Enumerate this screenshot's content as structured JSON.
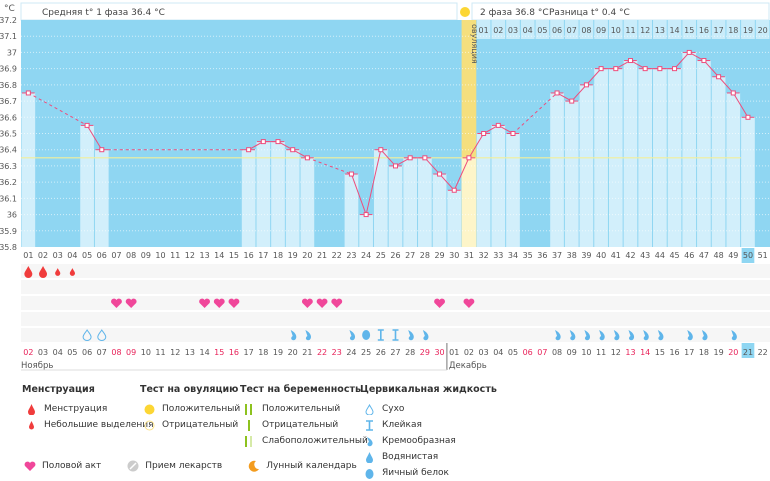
{
  "header": {
    "unit_label": "°C",
    "phase1_label": "Средняя t° 1 фаза 36.4 °C",
    "phase2_label": "2 фаза 36.8 °C",
    "diff_label": "Разница t° 0.4 °C",
    "ovulation_label": "овуляция"
  },
  "chart_data": {
    "type": "line",
    "title": "",
    "ylabel": "°C",
    "ylim": [
      35.8,
      37.2
    ],
    "yticks": [
      "35.8",
      "35.9",
      "36",
      "36.1",
      "36.2",
      "36.3",
      "36.4",
      "36.5",
      "36.6",
      "36.7",
      "36.8",
      "36.9",
      "37",
      "37.1",
      "37.2"
    ],
    "cycle_days": [
      "01",
      "02",
      "03",
      "04",
      "05",
      "06",
      "07",
      "08",
      "09",
      "10",
      "11",
      "12",
      "13",
      "14",
      "15",
      "16",
      "17",
      "18",
      "19",
      "20",
      "21",
      "22",
      "23",
      "24",
      "25",
      "26",
      "27",
      "28",
      "29",
      "30",
      "31",
      "32",
      "33",
      "34",
      "35",
      "36",
      "37",
      "38",
      "39",
      "40",
      "41",
      "42",
      "43",
      "44",
      "45",
      "46",
      "47",
      "48",
      "49",
      "50",
      "51"
    ],
    "dates": [
      "02",
      "03",
      "04",
      "05",
      "06",
      "07",
      "08",
      "09",
      "10",
      "11",
      "12",
      "13",
      "14",
      "15",
      "16",
      "17",
      "18",
      "19",
      "20",
      "21",
      "22",
      "23",
      "24",
      "25",
      "26",
      "27",
      "28",
      "29",
      "30",
      "01",
      "02",
      "03",
      "04",
      "05",
      "06",
      "07",
      "08",
      "09",
      "10",
      "11",
      "12",
      "13",
      "14",
      "15",
      "16",
      "17",
      "18",
      "19",
      "20",
      "21",
      "22"
    ],
    "weekend_dates_idx": [
      0,
      6,
      7,
      13,
      14,
      20,
      21,
      27,
      28,
      34,
      35,
      41,
      42,
      48
    ],
    "months": [
      "Ноябрь",
      "Декабрь"
    ],
    "phase2_days": [
      "01",
      "02",
      "03",
      "04",
      "05",
      "06",
      "07",
      "08",
      "09",
      "10",
      "11",
      "12",
      "13",
      "14",
      "15",
      "16",
      "17",
      "18",
      "19",
      "20"
    ],
    "series": [
      {
        "name": "Температура",
        "values": [
          36.75,
          null,
          null,
          null,
          36.55,
          36.4,
          null,
          null,
          null,
          null,
          null,
          null,
          null,
          null,
          null,
          36.4,
          36.45,
          36.45,
          36.4,
          36.35,
          null,
          null,
          36.25,
          36.0,
          36.4,
          36.3,
          36.35,
          36.35,
          36.25,
          36.15,
          36.35,
          36.5,
          36.55,
          36.5,
          null,
          null,
          36.75,
          36.7,
          36.8,
          36.9,
          36.9,
          36.95,
          36.9,
          36.9,
          36.9,
          37.0,
          36.95,
          36.85,
          36.75,
          36.6,
          null
        ]
      }
    ],
    "coverline": 36.35,
    "ovulation_day": 31,
    "today_day": 50,
    "menstruation": {
      "1": "heavy",
      "2": "heavy",
      "3": "light",
      "4": "light"
    },
    "intercourse_days": [
      7,
      8,
      13,
      14,
      15,
      20,
      21,
      22,
      29,
      31
    ],
    "cervical_fluid": {
      "5": "dry",
      "6": "dry",
      "19": "creamy",
      "20": "creamy",
      "23": "creamy",
      "24": "eggwhite",
      "25": "sticky",
      "26": "sticky",
      "27": "creamy",
      "28": "creamy",
      "37": "creamy",
      "38": "creamy",
      "39": "creamy",
      "40": "creamy",
      "41": "creamy",
      "42": "creamy",
      "43": "creamy",
      "44": "creamy",
      "46": "creamy",
      "47": "creamy",
      "49": "creamy"
    },
    "grid": true
  },
  "colors": {
    "bg": "#8fd6f2",
    "bar": "#d2effb",
    "line": "#ee4d7c",
    "cover": "#f3ef9a",
    "ovu": "#f5df7e",
    "blood": "#f03c3c",
    "heart": "#f0479a",
    "fluid": "#5fb5ea",
    "weekend": "#e8235a"
  },
  "legend": {
    "menstruation": {
      "title": "Менструация",
      "items": [
        "Менструация",
        "Небольшие выделения"
      ]
    },
    "ovulation_test": {
      "title": "Тест на овуляцию",
      "items": [
        "Положительный",
        "Отрицательный"
      ]
    },
    "pregnancy_test": {
      "title": "Тест на беременность",
      "items": [
        "Положительный",
        "Отрицательный",
        "Слабоположительный"
      ]
    },
    "cervical": {
      "title": "Цервикальная жидкость",
      "items": [
        "Сухо",
        "Клейкая",
        "Кремообразная",
        "Водянистая",
        "Яичный белок"
      ]
    },
    "bottom": [
      "Половой акт",
      "Прием лекарств",
      "Лунный календарь"
    ]
  }
}
